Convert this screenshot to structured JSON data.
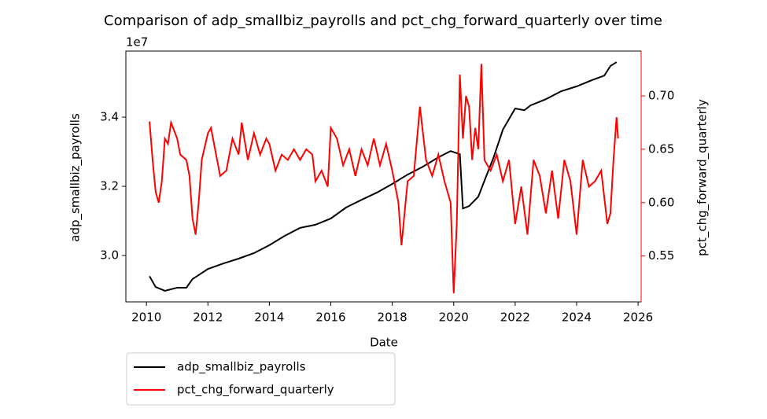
{
  "chart_data": {
    "type": "line",
    "title": "Comparison of adp_smallbiz_payrolls and pct_chg_forward_quarterly over time",
    "x_label": "Date",
    "y_label": "adp_smallbiz_payrolls",
    "y2_label": "pct_chg_forward_quarterly",
    "y_offset_label": "1e7",
    "xlim": [
      2009.33,
      2026.1
    ],
    "xticks": [
      2010,
      2012,
      2014,
      2016,
      2018,
      2020,
      2022,
      2024,
      2026
    ],
    "ylim": [
      2.866,
      3.591
    ],
    "yticks": [
      {
        "value": 3,
        "label": "3.0"
      },
      {
        "value": 3.2,
        "label": "3.2"
      },
      {
        "value": 3.4,
        "label": "3.4"
      }
    ],
    "y2lim": [
      0.507,
      0.742
    ],
    "y2ticks": [
      0.55,
      {
        "value": 0.6,
        "label": "0.60"
      },
      0.65,
      {
        "value": 0.7,
        "label": "0.70"
      }
    ],
    "y2_color": "#ff0000",
    "legend": "lower left outside",
    "series": [
      {
        "name": "adp_smallbiz_payrolls",
        "color": "#000000",
        "x": [
          2010.1,
          2010.3,
          2010.6,
          2011.0,
          2011.3,
          2011.5,
          2012.0,
          2012.5,
          2013.0,
          2013.5,
          2014.0,
          2014.5,
          2015.0,
          2015.5,
          2016.0,
          2016.5,
          2017.0,
          2017.5,
          2018.0,
          2018.5,
          2019.0,
          2019.5,
          2019.9,
          2020.2,
          2020.3,
          2020.5,
          2020.8,
          2021.0,
          2021.3,
          2021.6,
          2022.0,
          2022.3,
          2022.5,
          2023.0,
          2023.5,
          2024.0,
          2024.5,
          2024.9,
          2025.1,
          2025.3
        ],
        "values": [
          2.94,
          2.909,
          2.898,
          2.907,
          2.907,
          2.932,
          2.961,
          2.977,
          2.991,
          3.007,
          3.03,
          3.057,
          3.08,
          3.089,
          3.107,
          3.139,
          3.161,
          3.182,
          3.207,
          3.234,
          3.257,
          3.284,
          3.302,
          3.293,
          3.136,
          3.143,
          3.17,
          3.216,
          3.284,
          3.364,
          3.425,
          3.42,
          3.434,
          3.452,
          3.475,
          3.489,
          3.507,
          3.52,
          3.548,
          3.559
        ]
      },
      {
        "name": "pct_chg_forward_quarterly",
        "color": "#ff0000",
        "axis": "y2",
        "x": [
          2010.1,
          2010.2,
          2010.3,
          2010.4,
          2010.5,
          2010.6,
          2010.7,
          2010.8,
          2011.0,
          2011.1,
          2011.3,
          2011.4,
          2011.5,
          2011.6,
          2011.7,
          2011.8,
          2012.0,
          2012.1,
          2012.3,
          2012.4,
          2012.6,
          2012.8,
          2013.0,
          2013.1,
          2013.3,
          2013.5,
          2013.7,
          2013.9,
          2014.0,
          2014.2,
          2014.4,
          2014.6,
          2014.8,
          2015.0,
          2015.2,
          2015.4,
          2015.5,
          2015.7,
          2015.9,
          2016.0,
          2016.2,
          2016.4,
          2016.6,
          2016.8,
          2017.0,
          2017.2,
          2017.4,
          2017.6,
          2017.8,
          2018.0,
          2018.2,
          2018.3,
          2018.5,
          2018.7,
          2018.9,
          2019.1,
          2019.3,
          2019.5,
          2019.7,
          2019.9,
          2020.0,
          2020.1,
          2020.2,
          2020.3,
          2020.4,
          2020.5,
          2020.6,
          2020.7,
          2020.8,
          2020.9,
          2021.0,
          2021.2,
          2021.4,
          2021.6,
          2021.8,
          2022.0,
          2022.2,
          2022.4,
          2022.6,
          2022.8,
          2023.0,
          2023.2,
          2023.4,
          2023.6,
          2023.8,
          2024.0,
          2024.2,
          2024.4,
          2024.6,
          2024.8,
          2025.0,
          2025.1,
          2025.2,
          2025.3,
          2025.35
        ],
        "values": [
          0.676,
          0.64,
          0.61,
          0.6,
          0.62,
          0.66,
          0.655,
          0.675,
          0.66,
          0.645,
          0.64,
          0.625,
          0.585,
          0.57,
          0.6,
          0.64,
          0.665,
          0.67,
          0.64,
          0.625,
          0.63,
          0.66,
          0.645,
          0.675,
          0.64,
          0.665,
          0.645,
          0.66,
          0.655,
          0.63,
          0.645,
          0.64,
          0.65,
          0.64,
          0.65,
          0.645,
          0.62,
          0.63,
          0.615,
          0.67,
          0.66,
          0.635,
          0.65,
          0.625,
          0.65,
          0.635,
          0.66,
          0.635,
          0.655,
          0.63,
          0.6,
          0.56,
          0.62,
          0.625,
          0.69,
          0.64,
          0.625,
          0.645,
          0.62,
          0.6,
          0.515,
          0.58,
          0.72,
          0.66,
          0.7,
          0.69,
          0.64,
          0.67,
          0.65,
          0.73,
          0.64,
          0.63,
          0.645,
          0.62,
          0.64,
          0.58,
          0.615,
          0.57,
          0.64,
          0.625,
          0.59,
          0.63,
          0.585,
          0.64,
          0.62,
          0.57,
          0.64,
          0.615,
          0.62,
          0.63,
          0.58,
          0.59,
          0.64,
          0.68,
          0.66
        ]
      }
    ]
  }
}
